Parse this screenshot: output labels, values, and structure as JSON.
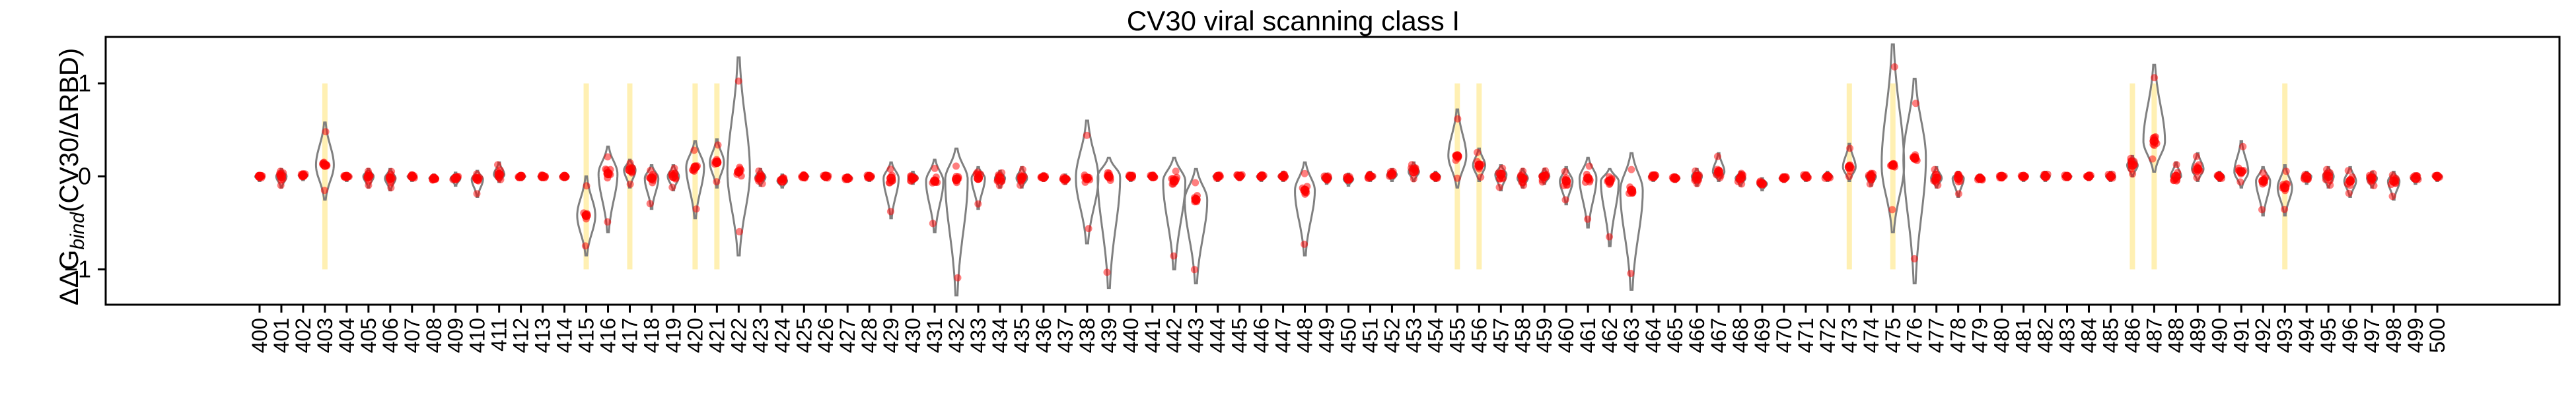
{
  "chart_data": {
    "type": "violin",
    "title": "CV30 viral scanning class I",
    "ylabel": "ΔΔG_bind(CV30/ΔRBD)",
    "xlabel": "",
    "y_ticks": [
      1,
      0,
      -1
    ],
    "ylim": [
      -1.38,
      1.5
    ],
    "grid": false,
    "legend": "none",
    "colors": {
      "violin_outline": "#808080",
      "points": "#ff0000",
      "highlight": "#fff0b3"
    },
    "categories": [
      "400",
      "401",
      "402",
      "403",
      "404",
      "405",
      "406",
      "407",
      "408",
      "409",
      "410",
      "411",
      "412",
      "413",
      "414",
      "415",
      "416",
      "417",
      "418",
      "419",
      "420",
      "421",
      "422",
      "423",
      "424",
      "425",
      "426",
      "427",
      "428",
      "429",
      "430",
      "431",
      "432",
      "433",
      "434",
      "435",
      "436",
      "437",
      "438",
      "439",
      "440",
      "441",
      "442",
      "443",
      "444",
      "445",
      "446",
      "447",
      "448",
      "449",
      "450",
      "451",
      "452",
      "453",
      "454",
      "455",
      "456",
      "457",
      "458",
      "459",
      "460",
      "461",
      "462",
      "463",
      "464",
      "465",
      "466",
      "467",
      "468",
      "469",
      "470",
      "471",
      "472",
      "473",
      "474",
      "475",
      "476",
      "477",
      "478",
      "479",
      "480",
      "481",
      "482",
      "483",
      "484",
      "485",
      "486",
      "487",
      "488",
      "489",
      "490",
      "491",
      "492",
      "493",
      "494",
      "495",
      "496",
      "497",
      "498",
      "499",
      "500"
    ],
    "highlighted_sites": [
      "403",
      "415",
      "417",
      "420",
      "421",
      "455",
      "456",
      "473",
      "475",
      "486",
      "487",
      "493"
    ],
    "highlight_range": [
      -1,
      1
    ],
    "distributions": [
      {
        "site": "400",
        "median": 0.0,
        "min": -0.05,
        "max": 0.03
      },
      {
        "site": "401",
        "median": 0.0,
        "min": -0.12,
        "max": 0.08
      },
      {
        "site": "402",
        "median": 0.01,
        "min": -0.04,
        "max": 0.04
      },
      {
        "site": "403",
        "median": 0.12,
        "min": -0.25,
        "max": 0.58
      },
      {
        "site": "404",
        "median": 0.0,
        "min": -0.05,
        "max": 0.03
      },
      {
        "site": "405",
        "median": 0.0,
        "min": -0.12,
        "max": 0.08
      },
      {
        "site": "406",
        "median": -0.02,
        "min": -0.15,
        "max": 0.08
      },
      {
        "site": "407",
        "median": 0.0,
        "min": -0.05,
        "max": 0.03
      },
      {
        "site": "408",
        "median": -0.02,
        "min": -0.06,
        "max": 0.02
      },
      {
        "site": "409",
        "median": -0.02,
        "min": -0.1,
        "max": 0.04
      },
      {
        "site": "410",
        "median": -0.03,
        "min": -0.22,
        "max": 0.06
      },
      {
        "site": "411",
        "median": 0.02,
        "min": -0.06,
        "max": 0.15
      },
      {
        "site": "412",
        "median": 0.0,
        "min": -0.04,
        "max": 0.02
      },
      {
        "site": "413",
        "median": 0.0,
        "min": -0.04,
        "max": 0.03
      },
      {
        "site": "414",
        "median": 0.0,
        "min": -0.04,
        "max": 0.02
      },
      {
        "site": "415",
        "median": -0.42,
        "min": -0.85,
        "max": 0.0
      },
      {
        "site": "416",
        "median": 0.03,
        "min": -0.6,
        "max": 0.32
      },
      {
        "site": "417",
        "median": 0.07,
        "min": -0.12,
        "max": 0.18
      },
      {
        "site": "418",
        "median": -0.02,
        "min": -0.35,
        "max": 0.12
      },
      {
        "site": "419",
        "median": 0.0,
        "min": -0.15,
        "max": 0.12
      },
      {
        "site": "420",
        "median": 0.1,
        "min": -0.45,
        "max": 0.38
      },
      {
        "site": "421",
        "median": 0.15,
        "min": -0.12,
        "max": 0.4
      },
      {
        "site": "422",
        "median": 0.05,
        "min": -0.85,
        "max": 1.28
      },
      {
        "site": "423",
        "median": -0.01,
        "min": -0.1,
        "max": 0.08
      },
      {
        "site": "424",
        "median": -0.05,
        "min": -0.12,
        "max": 0.02
      },
      {
        "site": "425",
        "median": 0.0,
        "min": -0.04,
        "max": 0.03
      },
      {
        "site": "426",
        "median": 0.0,
        "min": -0.04,
        "max": 0.03
      },
      {
        "site": "427",
        "median": -0.02,
        "min": -0.06,
        "max": 0.02
      },
      {
        "site": "428",
        "median": 0.0,
        "min": -0.05,
        "max": 0.02
      },
      {
        "site": "429",
        "median": -0.02,
        "min": -0.45,
        "max": 0.15
      },
      {
        "site": "430",
        "median": -0.02,
        "min": -0.08,
        "max": 0.05
      },
      {
        "site": "431",
        "median": -0.05,
        "min": -0.6,
        "max": 0.18
      },
      {
        "site": "432",
        "median": -0.03,
        "min": -1.28,
        "max": 0.3
      },
      {
        "site": "433",
        "median": -0.02,
        "min": -0.35,
        "max": 0.1
      },
      {
        "site": "434",
        "median": -0.02,
        "min": -0.12,
        "max": 0.06
      },
      {
        "site": "435",
        "median": -0.02,
        "min": -0.12,
        "max": 0.1
      },
      {
        "site": "436",
        "median": -0.01,
        "min": -0.05,
        "max": 0.03
      },
      {
        "site": "437",
        "median": -0.03,
        "min": -0.08,
        "max": 0.02
      },
      {
        "site": "438",
        "median": -0.02,
        "min": -0.72,
        "max": 0.6
      },
      {
        "site": "439",
        "median": 0.0,
        "min": -1.2,
        "max": 0.2
      },
      {
        "site": "440",
        "median": 0.0,
        "min": -0.05,
        "max": 0.03
      },
      {
        "site": "441",
        "median": 0.0,
        "min": -0.04,
        "max": 0.03
      },
      {
        "site": "442",
        "median": -0.05,
        "min": -1.0,
        "max": 0.2
      },
      {
        "site": "443",
        "median": -0.25,
        "min": -1.15,
        "max": 0.08
      },
      {
        "site": "444",
        "median": 0.0,
        "min": -0.05,
        "max": 0.03
      },
      {
        "site": "445",
        "median": 0.0,
        "min": -0.04,
        "max": 0.03
      },
      {
        "site": "446",
        "median": 0.0,
        "min": -0.05,
        "max": 0.03
      },
      {
        "site": "447",
        "median": 0.0,
        "min": -0.05,
        "max": 0.05
      },
      {
        "site": "448",
        "median": -0.15,
        "min": -0.85,
        "max": 0.15
      },
      {
        "site": "449",
        "median": -0.02,
        "min": -0.08,
        "max": 0.03
      },
      {
        "site": "450",
        "median": -0.03,
        "min": -0.1,
        "max": 0.03
      },
      {
        "site": "451",
        "median": 0.0,
        "min": -0.05,
        "max": 0.05
      },
      {
        "site": "452",
        "median": 0.02,
        "min": -0.05,
        "max": 0.08
      },
      {
        "site": "453",
        "median": 0.05,
        "min": -0.05,
        "max": 0.15
      },
      {
        "site": "454",
        "median": 0.0,
        "min": -0.05,
        "max": 0.05
      },
      {
        "site": "455",
        "median": 0.22,
        "min": -0.12,
        "max": 0.72
      },
      {
        "site": "456",
        "median": 0.12,
        "min": -0.05,
        "max": 0.3
      },
      {
        "site": "457",
        "median": 0.02,
        "min": -0.15,
        "max": 0.12
      },
      {
        "site": "458",
        "median": -0.02,
        "min": -0.12,
        "max": 0.08
      },
      {
        "site": "459",
        "median": 0.0,
        "min": -0.08,
        "max": 0.08
      },
      {
        "site": "460",
        "median": -0.05,
        "min": -0.3,
        "max": 0.1
      },
      {
        "site": "461",
        "median": -0.02,
        "min": -0.55,
        "max": 0.2
      },
      {
        "site": "462",
        "median": -0.05,
        "min": -0.75,
        "max": 0.08
      },
      {
        "site": "463",
        "median": -0.15,
        "min": -1.22,
        "max": 0.25
      },
      {
        "site": "464",
        "median": 0.0,
        "min": -0.05,
        "max": 0.03
      },
      {
        "site": "465",
        "median": -0.02,
        "min": -0.06,
        "max": 0.02
      },
      {
        "site": "466",
        "median": 0.0,
        "min": -0.1,
        "max": 0.08
      },
      {
        "site": "467",
        "median": 0.05,
        "min": -0.05,
        "max": 0.25
      },
      {
        "site": "468",
        "median": -0.02,
        "min": -0.1,
        "max": 0.05
      },
      {
        "site": "469",
        "median": -0.08,
        "min": -0.15,
        "max": -0.02
      },
      {
        "site": "470",
        "median": -0.02,
        "min": -0.06,
        "max": 0.02
      },
      {
        "site": "471",
        "median": 0.0,
        "min": -0.05,
        "max": 0.03
      },
      {
        "site": "472",
        "median": 0.0,
        "min": -0.05,
        "max": 0.05
      },
      {
        "site": "473",
        "median": 0.1,
        "min": -0.05,
        "max": 0.35
      },
      {
        "site": "474",
        "median": 0.0,
        "min": -0.1,
        "max": 0.05
      },
      {
        "site": "475",
        "median": 0.12,
        "min": -0.6,
        "max": 1.42
      },
      {
        "site": "476",
        "median": 0.2,
        "min": -1.15,
        "max": 1.05
      },
      {
        "site": "477",
        "median": -0.02,
        "min": -0.12,
        "max": 0.1
      },
      {
        "site": "478",
        "median": -0.02,
        "min": -0.22,
        "max": 0.05
      },
      {
        "site": "479",
        "median": -0.02,
        "min": -0.06,
        "max": 0.02
      },
      {
        "site": "480",
        "median": 0.0,
        "min": -0.04,
        "max": 0.03
      },
      {
        "site": "481",
        "median": 0.0,
        "min": -0.05,
        "max": 0.03
      },
      {
        "site": "482",
        "median": 0.0,
        "min": -0.05,
        "max": 0.05
      },
      {
        "site": "483",
        "median": 0.0,
        "min": -0.04,
        "max": 0.03
      },
      {
        "site": "484",
        "median": 0.0,
        "min": -0.04,
        "max": 0.03
      },
      {
        "site": "485",
        "median": 0.0,
        "min": -0.05,
        "max": 0.05
      },
      {
        "site": "486",
        "median": 0.12,
        "min": 0.0,
        "max": 0.22
      },
      {
        "site": "487",
        "median": 0.38,
        "min": 0.05,
        "max": 1.2
      },
      {
        "site": "488",
        "median": 0.0,
        "min": -0.05,
        "max": 0.15
      },
      {
        "site": "489",
        "median": 0.08,
        "min": -0.05,
        "max": 0.25
      },
      {
        "site": "490",
        "median": 0.0,
        "min": -0.05,
        "max": 0.05
      },
      {
        "site": "491",
        "median": 0.05,
        "min": -0.12,
        "max": 0.38
      },
      {
        "site": "492",
        "median": -0.05,
        "min": -0.42,
        "max": 0.1
      },
      {
        "site": "493",
        "median": -0.12,
        "min": -0.42,
        "max": 0.12
      },
      {
        "site": "494",
        "median": 0.0,
        "min": -0.08,
        "max": 0.05
      },
      {
        "site": "495",
        "median": 0.0,
        "min": -0.12,
        "max": 0.1
      },
      {
        "site": "496",
        "median": -0.05,
        "min": -0.22,
        "max": 0.1
      },
      {
        "site": "497",
        "median": -0.02,
        "min": -0.12,
        "max": 0.05
      },
      {
        "site": "498",
        "median": -0.05,
        "min": -0.25,
        "max": 0.05
      },
      {
        "site": "499",
        "median": -0.02,
        "min": -0.08,
        "max": 0.03
      },
      {
        "site": "500",
        "median": 0.0,
        "min": -0.05,
        "max": 0.03
      }
    ]
  }
}
